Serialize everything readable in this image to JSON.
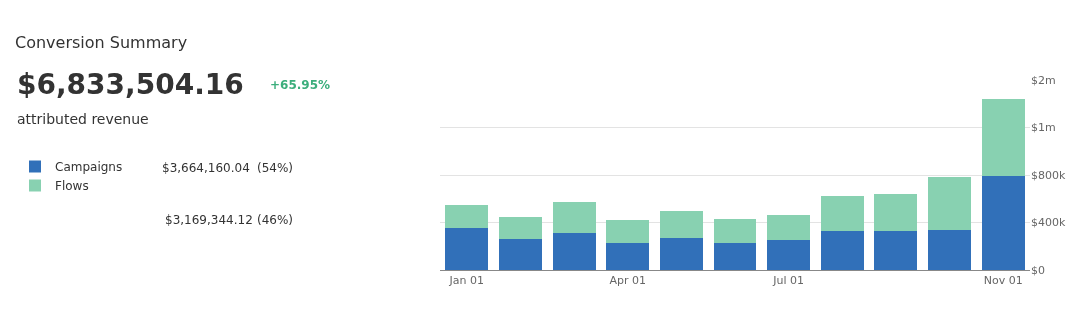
{
  "chart_data": {
    "type": "bar",
    "stacked": true,
    "title": "Conversion Summary",
    "annotations": [
      "$6,833,504.16",
      "+65.95%",
      "attributed revenue",
      "$3,664,160.04",
      "(54%)",
      "$3,169,344.12",
      "(46%)"
    ],
    "categories": [
      "Jan 01",
      null,
      null,
      "Apr 01",
      null,
      null,
      "Jul 01",
      null,
      null,
      null,
      "Nov 01"
    ],
    "series": [
      {
        "name": "Campaigns",
        "color": "#3170b9",
        "values": [
          350000,
          260000,
          310000,
          230000,
          270000,
          230000,
          250000,
          330000,
          330000,
          340000,
          790000
        ]
      },
      {
        "name": "Flows",
        "color": "#88d1b1",
        "values": [
          200000,
          190000,
          260000,
          190000,
          230000,
          200000,
          210000,
          290000,
          310000,
          440000,
          650000
        ]
      }
    ],
    "ylim": [
      0,
      1600000
    ],
    "yticks": [
      {
        "value": 0,
        "label": "$0"
      },
      {
        "value": 400000,
        "label": "$400k"
      },
      {
        "value": 800000,
        "label": "$800k"
      },
      {
        "value": 1200000,
        "label": "$1m"
      },
      {
        "value": 1600000,
        "label": "$2m"
      }
    ],
    "grid": "y",
    "legend": "left"
  }
}
